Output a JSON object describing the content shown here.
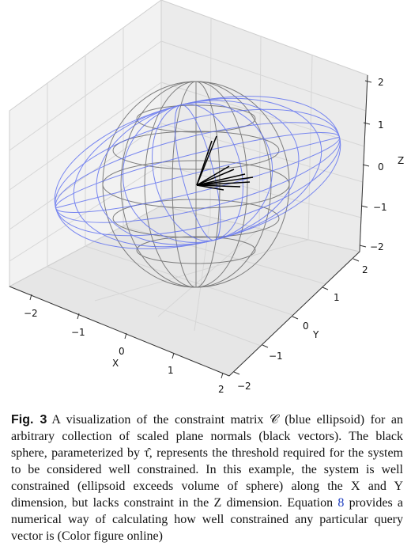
{
  "figure": {
    "axis_labels": {
      "x": "X",
      "y": "Y",
      "z": "Z"
    },
    "x_ticks": [
      "−2",
      "−1",
      "0",
      "1",
      "2"
    ],
    "y_ticks": [
      "2",
      "1",
      "0",
      "−1",
      "−2"
    ],
    "z_ticks": [
      "2",
      "1",
      "0",
      "−1",
      "−2"
    ],
    "colors": {
      "ellipsoid": "#5a6cf0",
      "sphere": "#555555",
      "vectors": "#000000",
      "grid": "#d8d8d8"
    }
  },
  "caption": {
    "label": "Fig. 3",
    "text_1": "A visualization of the constraint matrix 𝒞 (blue ellipsoid) for an arbitrary collection of scaled plane normals (black vectors). The black sphere, parameterized by τ̂, represents the threshold required for the system to be considered well constrained. In this example, the system is well constrained (ellipsoid exceeds volume of sphere) along the X and Y dimension, but lacks constraint in the Z dimension. Equation ",
    "ref": "8",
    "text_2": " provides a numerical way of calculating how well constrained any particular query vector is (Color figure online)"
  }
}
